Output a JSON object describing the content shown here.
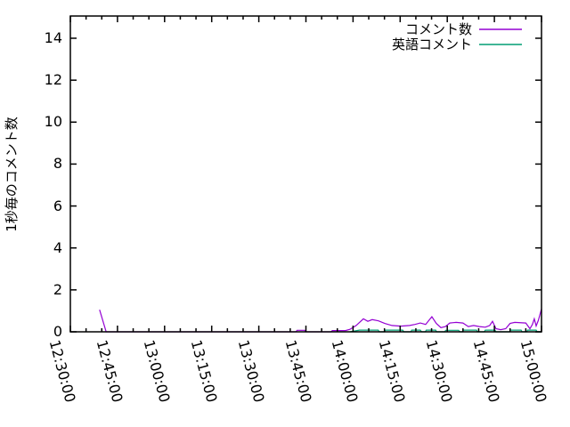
{
  "chart_data": {
    "type": "line",
    "title": "",
    "xlabel": "",
    "ylabel": "1秒毎のコメント数",
    "grid": false,
    "legend_position": "top-right-inside",
    "x_axis": {
      "unit": "time",
      "range_minutes": [
        0,
        150
      ],
      "major_tick_interval_minutes": 15,
      "minor_tick_interval_minutes": 5,
      "tick_labels": [
        "12:30:00",
        "12:45:00",
        "13:00:00",
        "13:15:00",
        "13:30:00",
        "13:45:00",
        "14:00:00",
        "14:15:00",
        "14:30:00",
        "14:45:00",
        "15:00:00"
      ],
      "tick_label_rotation_deg": 75
    },
    "y_axis": {
      "range": [
        0,
        15.06
      ],
      "ticks": [
        0,
        2,
        4,
        6,
        8,
        10,
        12,
        14
      ]
    },
    "colors": {
      "axis": "#000000",
      "background": "#ffffff",
      "series1": "#9400d3",
      "series2": "#009e73"
    },
    "legend": [
      {
        "label": "コメント数",
        "color": "#9400d3"
      },
      {
        "label": "英語コメント",
        "color": "#009e73"
      }
    ],
    "series": [
      {
        "name": "コメント数",
        "color": "#9400d3",
        "points_min_val": [
          [
            9.3,
            1.05
          ],
          [
            11.4,
            0
          ],
          [
            71.8,
            0
          ],
          [
            72.2,
            0.07
          ],
          [
            74.6,
            0.07
          ],
          [
            75.0,
            0
          ],
          [
            83.0,
            0
          ],
          [
            83.4,
            0.06
          ],
          [
            87.6,
            0.06
          ],
          [
            89.0,
            0.12
          ],
          [
            91.0,
            0.3
          ],
          [
            93.3,
            0.62
          ],
          [
            94.7,
            0.5
          ],
          [
            96.1,
            0.58
          ],
          [
            98.1,
            0.52
          ],
          [
            100.1,
            0.4
          ],
          [
            102.4,
            0.3
          ],
          [
            105.2,
            0.27
          ],
          [
            108.0,
            0.3
          ],
          [
            109.7,
            0.35
          ],
          [
            111.4,
            0.42
          ],
          [
            113.1,
            0.35
          ],
          [
            115.1,
            0.72
          ],
          [
            116.5,
            0.4
          ],
          [
            118.0,
            0.2
          ],
          [
            119.4,
            0.25
          ],
          [
            120.8,
            0.42
          ],
          [
            122.8,
            0.45
          ],
          [
            125.0,
            0.42
          ],
          [
            126.7,
            0.25
          ],
          [
            128.4,
            0.3
          ],
          [
            130.2,
            0.25
          ],
          [
            132.1,
            0.22
          ],
          [
            133.5,
            0.3
          ],
          [
            134.4,
            0.5
          ],
          [
            135.5,
            0.15
          ],
          [
            137.0,
            0.1
          ],
          [
            138.6,
            0.15
          ],
          [
            140.0,
            0.4
          ],
          [
            141.5,
            0.45
          ],
          [
            145.0,
            0.42
          ],
          [
            146.3,
            0.15
          ],
          [
            147.1,
            0.35
          ],
          [
            147.7,
            0.62
          ],
          [
            148.3,
            0.28
          ],
          [
            149.0,
            0.55
          ],
          [
            150.0,
            1.1
          ]
        ]
      },
      {
        "name": "英語コメント",
        "color": "#009e73",
        "points_min_val": [
          [
            89.0,
            0
          ],
          [
            92.0,
            0.08
          ],
          [
            98.0,
            0.08
          ],
          [
            98.4,
            0
          ],
          [
            100.0,
            0
          ],
          [
            100.3,
            0.08
          ],
          [
            105.8,
            0.08
          ],
          [
            106.2,
            0
          ],
          [
            108.4,
            0
          ],
          [
            108.7,
            0.08
          ],
          [
            111.4,
            0.08
          ],
          [
            111.8,
            0
          ],
          [
            113.0,
            0
          ],
          [
            113.3,
            0.08
          ],
          [
            116.3,
            0.08
          ],
          [
            116.6,
            0
          ],
          [
            119.2,
            0
          ],
          [
            119.5,
            0.07
          ],
          [
            123.6,
            0.07
          ],
          [
            124.0,
            0
          ],
          [
            124.8,
            0
          ],
          [
            125.1,
            0.08
          ],
          [
            129.3,
            0.08
          ],
          [
            129.6,
            0
          ],
          [
            131.8,
            0
          ],
          [
            132.1,
            0.08
          ],
          [
            135.2,
            0.08
          ],
          [
            135.5,
            0
          ],
          [
            139.8,
            0
          ],
          [
            140.1,
            0.08
          ],
          [
            143.5,
            0.08
          ],
          [
            143.8,
            0
          ],
          [
            145.3,
            0
          ],
          [
            145.6,
            0.08
          ],
          [
            148.3,
            0.08
          ],
          [
            148.6,
            0
          ],
          [
            150.0,
            0
          ]
        ]
      }
    ]
  }
}
